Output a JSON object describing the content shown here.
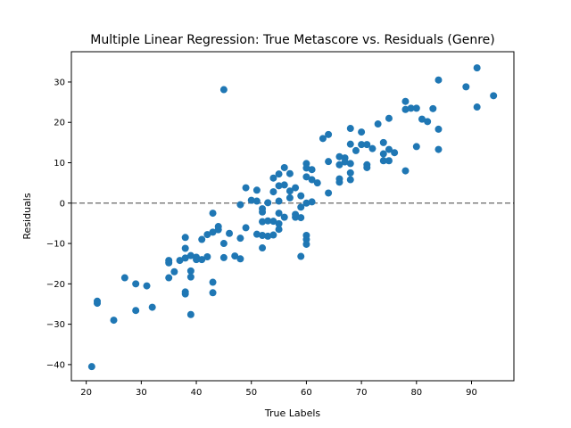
{
  "chart_data": {
    "type": "scatter",
    "title": "Multiple Linear Regression: True Metascore vs. Residuals (Genre)",
    "xlabel": "True Labels",
    "ylabel": "Residuals",
    "xlim": [
      17.3,
      97.7
    ],
    "ylim": [
      -44,
      37.5
    ],
    "xticks": [
      20,
      30,
      40,
      50,
      60,
      70,
      80,
      90
    ],
    "yticks": [
      -40,
      -30,
      -20,
      -10,
      0,
      10,
      20,
      30
    ],
    "reference_line": {
      "y": 0,
      "style": "dashed",
      "color": "#808080"
    },
    "marker_color": "#1f77b4",
    "points": [
      [
        21,
        -40.5
      ],
      [
        22,
        -24.3
      ],
      [
        22,
        -24.8
      ],
      [
        25,
        -29
      ],
      [
        27,
        -18.5
      ],
      [
        29,
        -20
      ],
      [
        29,
        -26.6
      ],
      [
        31,
        -20.5
      ],
      [
        32,
        -25.8
      ],
      [
        35,
        -14.2
      ],
      [
        35,
        -14.8
      ],
      [
        35,
        -18.5
      ],
      [
        36,
        -17
      ],
      [
        37,
        -14.2
      ],
      [
        38,
        -8.5
      ],
      [
        38,
        -11.2
      ],
      [
        38,
        -13.6
      ],
      [
        38,
        -22
      ],
      [
        38,
        -22.5
      ],
      [
        39,
        -13
      ],
      [
        39,
        -16.8
      ],
      [
        39,
        -18.3
      ],
      [
        39,
        -27.6
      ],
      [
        40,
        -13.4
      ],
      [
        40,
        -14
      ],
      [
        41,
        -9
      ],
      [
        41,
        -14
      ],
      [
        42,
        -7.8
      ],
      [
        42,
        -13.3
      ],
      [
        43,
        -2.5
      ],
      [
        43,
        -7.2
      ],
      [
        43,
        -19.6
      ],
      [
        43,
        -22.2
      ],
      [
        44,
        -5.8
      ],
      [
        44,
        -6.6
      ],
      [
        45,
        28.1
      ],
      [
        45,
        -10
      ],
      [
        45,
        -13.5
      ],
      [
        46,
        -7.5
      ],
      [
        47,
        -13.1
      ],
      [
        48,
        -0.4
      ],
      [
        48,
        -8.7
      ],
      [
        48,
        -13.8
      ],
      [
        49,
        3.8
      ],
      [
        49,
        -6.1
      ],
      [
        50,
        0.7
      ],
      [
        51,
        3.2
      ],
      [
        51,
        0.5
      ],
      [
        51,
        -7.7
      ],
      [
        52,
        -1.4
      ],
      [
        52,
        -2.2
      ],
      [
        52,
        -4.6
      ],
      [
        52,
        -8
      ],
      [
        52,
        -11.1
      ],
      [
        53,
        0.1
      ],
      [
        53,
        -4.4
      ],
      [
        53,
        -8.2
      ],
      [
        54,
        6.2
      ],
      [
        54,
        2.8
      ],
      [
        54,
        -4.5
      ],
      [
        54,
        -7.9
      ],
      [
        55,
        7.2
      ],
      [
        55,
        4.3
      ],
      [
        55,
        0.5
      ],
      [
        55,
        -2.5
      ],
      [
        55,
        -5.1
      ],
      [
        55,
        -6.5
      ],
      [
        56,
        8.8
      ],
      [
        56,
        4.5
      ],
      [
        56,
        -3.5
      ],
      [
        57,
        7.3
      ],
      [
        57,
        3
      ],
      [
        57,
        1.3
      ],
      [
        58,
        3.8
      ],
      [
        58,
        -2.8
      ],
      [
        58,
        -3.5
      ],
      [
        59,
        1.8
      ],
      [
        59,
        -1
      ],
      [
        59,
        -3.6
      ],
      [
        59,
        -13.2
      ],
      [
        60,
        9.8
      ],
      [
        60,
        8.7
      ],
      [
        60,
        6.5
      ],
      [
        60,
        0
      ],
      [
        60,
        -8
      ],
      [
        60,
        -9
      ],
      [
        60,
        -10.2
      ],
      [
        61,
        8.3
      ],
      [
        61,
        5.8
      ],
      [
        61,
        0.3
      ],
      [
        62,
        5
      ],
      [
        63,
        16
      ],
      [
        64,
        17
      ],
      [
        64,
        10.3
      ],
      [
        64,
        2.5
      ],
      [
        66,
        11.5
      ],
      [
        66,
        9.5
      ],
      [
        66,
        6
      ],
      [
        66,
        5.2
      ],
      [
        67,
        11.2
      ],
      [
        67,
        10.2
      ],
      [
        68,
        18.5
      ],
      [
        68,
        14.6
      ],
      [
        68,
        9.8
      ],
      [
        68,
        7.5
      ],
      [
        68,
        5.8
      ],
      [
        69,
        13
      ],
      [
        70,
        17.6
      ],
      [
        70,
        14.5
      ],
      [
        71,
        14.5
      ],
      [
        71,
        9.5
      ],
      [
        71,
        8.8
      ],
      [
        72,
        13.5
      ],
      [
        73,
        19.6
      ],
      [
        74,
        15
      ],
      [
        74,
        12.2
      ],
      [
        74,
        10.5
      ],
      [
        75,
        21
      ],
      [
        75,
        13.3
      ],
      [
        75,
        10.5
      ],
      [
        76,
        12.5
      ],
      [
        78,
        25.2
      ],
      [
        78,
        23.2
      ],
      [
        78,
        8
      ],
      [
        79,
        23.5
      ],
      [
        80,
        23.5
      ],
      [
        80,
        14
      ],
      [
        81,
        20.8
      ],
      [
        82,
        20.2
      ],
      [
        83,
        23.4
      ],
      [
        84,
        30.5
      ],
      [
        84,
        18.3
      ],
      [
        84,
        13.3
      ],
      [
        89,
        28.8
      ],
      [
        91,
        33.5
      ],
      [
        91,
        23.8
      ],
      [
        94,
        26.6
      ]
    ]
  }
}
